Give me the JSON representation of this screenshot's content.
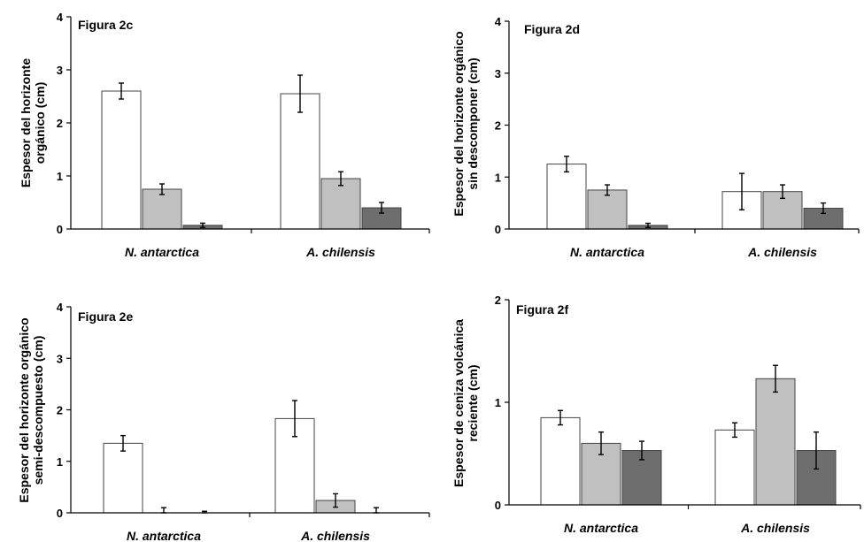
{
  "chart_data": [
    {
      "type": "bar",
      "title": "Figura 2c",
      "ylabel": [
        "Espesor del horizonte",
        "orgánico (cm)"
      ],
      "categories": [
        "N. antarctica",
        "A. chilensis"
      ],
      "ylim": [
        0,
        4
      ],
      "yticks": [
        0,
        1,
        2,
        3,
        4
      ],
      "series": [
        {
          "values": [
            2.6,
            2.55
          ],
          "errors": [
            0.15,
            0.35
          ],
          "color": "#ffffff"
        },
        {
          "values": [
            0.75,
            0.95
          ],
          "errors": [
            0.1,
            0.13
          ],
          "color": "#c0c0c0"
        },
        {
          "values": [
            0.07,
            0.4
          ],
          "errors": [
            0.04,
            0.1
          ],
          "color": "#6e6e6e"
        }
      ]
    },
    {
      "type": "bar",
      "title": "Figura 2d",
      "ylabel": [
        "Espesor del horizonte orgánico",
        "sin descomponer (cm)"
      ],
      "categories": [
        "N. antarctica",
        "A. chilensis"
      ],
      "ylim": [
        0,
        4
      ],
      "yticks": [
        0,
        1,
        2,
        3,
        4
      ],
      "series": [
        {
          "values": [
            1.25,
            0.72
          ],
          "errors": [
            0.15,
            0.35
          ],
          "color": "#ffffff"
        },
        {
          "values": [
            0.75,
            0.72
          ],
          "errors": [
            0.1,
            0.13
          ],
          "color": "#c0c0c0"
        },
        {
          "values": [
            0.07,
            0.4
          ],
          "errors": [
            0.04,
            0.1
          ],
          "color": "#6e6e6e"
        }
      ]
    },
    {
      "type": "bar",
      "title": "Figura 2e",
      "ylabel": [
        "Espesor del horizonte orgánico",
        "semi-descompuesto (cm)"
      ],
      "categories": [
        "N. antarctica",
        "A. chilensis"
      ],
      "ylim": [
        0,
        4
      ],
      "yticks": [
        0,
        1,
        2,
        3,
        4
      ],
      "series": [
        {
          "values": [
            1.35,
            1.83
          ],
          "errors": [
            0.15,
            0.35
          ],
          "color": "#ffffff"
        },
        {
          "values": [
            0,
            0.24
          ],
          "errors": [
            0.1,
            0.13
          ],
          "color": "#c0c0c0"
        },
        {
          "values": [
            0,
            0
          ],
          "errors": [
            0.03,
            0.1
          ],
          "color": "#6e6e6e"
        }
      ]
    },
    {
      "type": "bar",
      "title": "Figura 2f",
      "ylabel": [
        "Espesor de ceniza volcánica",
        "reciente (cm)"
      ],
      "categories": [
        "N. antarctica",
        "A. chilensis"
      ],
      "ylim": [
        0,
        2
      ],
      "yticks": [
        0,
        1,
        2
      ],
      "series": [
        {
          "values": [
            0.85,
            0.73
          ],
          "errors": [
            0.07,
            0.07
          ],
          "color": "#ffffff"
        },
        {
          "values": [
            0.6,
            1.23
          ],
          "errors": [
            0.11,
            0.13
          ],
          "color": "#c0c0c0"
        },
        {
          "values": [
            0.53,
            0.53
          ],
          "errors": [
            0.09,
            0.18
          ],
          "color": "#6e6e6e"
        }
      ]
    }
  ]
}
